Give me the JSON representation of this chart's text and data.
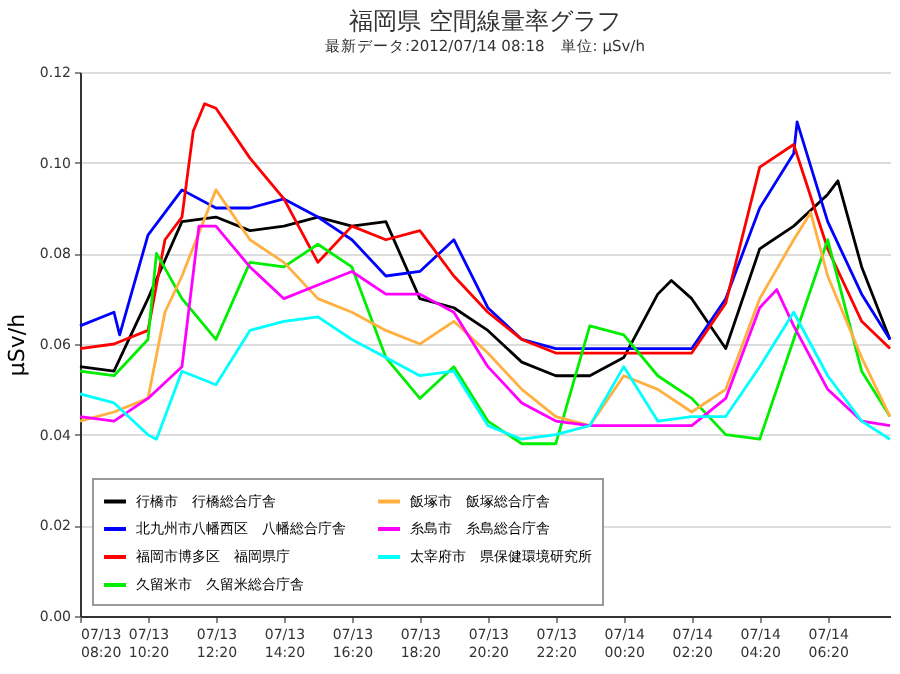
{
  "chart_data": {
    "type": "line",
    "title": "福岡県 空間線量率グラフ",
    "subtitle": "最新データ:2012/07/14 08:18　単位: μSv/h",
    "ylabel": "μSv/h",
    "xlim": [
      "2012-07-13T08:20",
      "2012-07-14T08:10"
    ],
    "xticks": [
      {
        "value": "2012-07-13T08:20",
        "label": "07/13\n08:20"
      },
      {
        "value": "2012-07-13T10:20",
        "label": "07/13\n10:20"
      },
      {
        "value": "2012-07-13T12:20",
        "label": "07/13\n12:20"
      },
      {
        "value": "2012-07-13T14:20",
        "label": "07/13\n14:20"
      },
      {
        "value": "2012-07-13T16:20",
        "label": "07/13\n16:20"
      },
      {
        "value": "2012-07-13T18:20",
        "label": "07/13\n18:20"
      },
      {
        "value": "2012-07-13T20:20",
        "label": "07/13\n20:20"
      },
      {
        "value": "2012-07-13T22:20",
        "label": "07/13\n22:20"
      },
      {
        "value": "2012-07-14T00:20",
        "label": "07/14\n00:20"
      },
      {
        "value": "2012-07-14T02:20",
        "label": "07/14\n02:20"
      },
      {
        "value": "2012-07-14T04:20",
        "label": "07/14\n04:20"
      },
      {
        "value": "2012-07-14T06:20",
        "label": "07/14\n06:20"
      }
    ],
    "ylim": [
      0,
      0.12
    ],
    "yticks": [
      {
        "value": 0,
        "label": "0.00"
      },
      {
        "value": 0.02,
        "label": "0.02"
      },
      {
        "value": 0.04,
        "label": "0.04"
      },
      {
        "value": 0.06,
        "label": "0.06"
      },
      {
        "value": 0.08,
        "label": "0.08"
      },
      {
        "value": 0.1,
        "label": "0.10"
      },
      {
        "value": 0.12,
        "label": "0.12"
      }
    ],
    "grid": "y",
    "legend": "bottom left",
    "series": [
      {
        "name": "行橋市　行橋総合庁舎",
        "color": "#000000",
        "x": [
          "2012-07-13T08:20",
          "2012-07-13T09:20",
          "2012-07-13T10:20",
          "2012-07-13T11:20",
          "2012-07-13T12:20",
          "2012-07-13T13:20",
          "2012-07-13T14:20",
          "2012-07-13T15:20",
          "2012-07-13T16:20",
          "2012-07-13T17:20",
          "2012-07-13T18:20",
          "2012-07-13T19:20",
          "2012-07-13T20:20",
          "2012-07-13T21:20",
          "2012-07-13T22:20",
          "2012-07-13T23:20",
          "2012-07-14T00:20",
          "2012-07-14T01:20",
          "2012-07-14T01:44",
          "2012-07-14T02:20",
          "2012-07-14T03:20",
          "2012-07-14T04:20",
          "2012-07-14T05:20",
          "2012-07-14T06:20",
          "2012-07-14T06:38",
          "2012-07-14T07:20",
          "2012-07-14T08:10"
        ],
        "values": [
          0.055,
          0.054,
          0.07,
          0.087,
          0.088,
          0.085,
          0.086,
          0.088,
          0.086,
          0.087,
          0.07,
          0.068,
          0.063,
          0.056,
          0.053,
          0.053,
          0.057,
          0.071,
          0.074,
          0.07,
          0.059,
          0.081,
          0.086,
          0.093,
          0.096,
          0.077,
          0.061
        ]
      },
      {
        "name": "北九州市八幡西区　八幡総合庁舎",
        "color": "#0000ff",
        "x": [
          "2012-07-13T08:20",
          "2012-07-13T09:20",
          "2012-07-13T09:30",
          "2012-07-13T10:20",
          "2012-07-13T11:20",
          "2012-07-13T12:20",
          "2012-07-13T13:20",
          "2012-07-13T14:20",
          "2012-07-13T15:20",
          "2012-07-13T16:20",
          "2012-07-13T17:20",
          "2012-07-13T18:20",
          "2012-07-13T19:20",
          "2012-07-13T20:20",
          "2012-07-13T21:20",
          "2012-07-13T22:20",
          "2012-07-13T23:20",
          "2012-07-14T00:20",
          "2012-07-14T01:20",
          "2012-07-14T02:20",
          "2012-07-14T03:20",
          "2012-07-14T04:20",
          "2012-07-14T05:20",
          "2012-07-14T05:26",
          "2012-07-14T06:20",
          "2012-07-14T07:20",
          "2012-07-14T08:10"
        ],
        "values": [
          0.064,
          0.067,
          0.062,
          0.084,
          0.094,
          0.09,
          0.09,
          0.092,
          0.088,
          0.083,
          0.075,
          0.076,
          0.083,
          0.068,
          0.061,
          0.059,
          0.059,
          0.059,
          0.059,
          0.059,
          0.07,
          0.09,
          0.102,
          0.109,
          0.087,
          0.071,
          0.061
        ]
      },
      {
        "name": "福岡市博多区　福岡県庁",
        "color": "#ff0000",
        "x": [
          "2012-07-13T08:20",
          "2012-07-13T09:20",
          "2012-07-13T10:20",
          "2012-07-13T10:50",
          "2012-07-13T11:20",
          "2012-07-13T11:40",
          "2012-07-13T12:00",
          "2012-07-13T12:20",
          "2012-07-13T13:20",
          "2012-07-13T14:20",
          "2012-07-13T15:20",
          "2012-07-13T16:20",
          "2012-07-13T17:20",
          "2012-07-13T18:20",
          "2012-07-13T19:20",
          "2012-07-13T20:20",
          "2012-07-13T21:20",
          "2012-07-13T22:20",
          "2012-07-13T23:20",
          "2012-07-14T00:20",
          "2012-07-14T01:20",
          "2012-07-14T02:20",
          "2012-07-14T03:20",
          "2012-07-14T04:20",
          "2012-07-14T05:20",
          "2012-07-14T06:20",
          "2012-07-14T07:20",
          "2012-07-14T08:10"
        ],
        "values": [
          0.059,
          0.06,
          0.063,
          0.083,
          0.088,
          0.107,
          0.113,
          0.112,
          0.101,
          0.092,
          0.078,
          0.086,
          0.083,
          0.085,
          0.075,
          0.067,
          0.061,
          0.058,
          0.058,
          0.058,
          0.058,
          0.058,
          0.069,
          0.099,
          0.104,
          0.081,
          0.065,
          0.059
        ]
      },
      {
        "name": "久留米市　久留米総合庁舎",
        "color": "#00ee00",
        "x": [
          "2012-07-13T08:20",
          "2012-07-13T09:20",
          "2012-07-13T10:20",
          "2012-07-13T10:35",
          "2012-07-13T11:20",
          "2012-07-13T12:20",
          "2012-07-13T13:20",
          "2012-07-13T14:20",
          "2012-07-13T15:20",
          "2012-07-13T16:20",
          "2012-07-13T17:20",
          "2012-07-13T18:20",
          "2012-07-13T19:20",
          "2012-07-13T20:20",
          "2012-07-13T21:20",
          "2012-07-13T22:20",
          "2012-07-13T23:20",
          "2012-07-14T00:20",
          "2012-07-14T01:20",
          "2012-07-14T02:20",
          "2012-07-14T03:20",
          "2012-07-14T04:20",
          "2012-07-14T05:20",
          "2012-07-14T06:20",
          "2012-07-14T07:20",
          "2012-07-14T08:10"
        ],
        "values": [
          0.054,
          0.053,
          0.061,
          0.08,
          0.07,
          0.061,
          0.078,
          0.077,
          0.082,
          0.077,
          0.057,
          0.048,
          0.055,
          0.043,
          0.038,
          0.038,
          0.064,
          0.062,
          0.053,
          0.048,
          0.04,
          0.039,
          0.061,
          0.083,
          0.054,
          0.044
        ]
      },
      {
        "name": "飯塚市　飯塚総合庁舎",
        "color": "#ffb040",
        "x": [
          "2012-07-13T08:20",
          "2012-07-13T09:20",
          "2012-07-13T10:20",
          "2012-07-13T10:50",
          "2012-07-13T11:20",
          "2012-07-13T12:20",
          "2012-07-13T13:20",
          "2012-07-13T14:20",
          "2012-07-13T15:20",
          "2012-07-13T16:20",
          "2012-07-13T17:20",
          "2012-07-13T18:20",
          "2012-07-13T19:20",
          "2012-07-13T20:20",
          "2012-07-13T21:20",
          "2012-07-13T22:20",
          "2012-07-13T23:20",
          "2012-07-14T00:20",
          "2012-07-14T01:20",
          "2012-07-14T02:20",
          "2012-07-14T03:20",
          "2012-07-14T04:20",
          "2012-07-14T05:20",
          "2012-07-14T05:50",
          "2012-07-14T06:20",
          "2012-07-14T07:20",
          "2012-07-14T08:10"
        ],
        "values": [
          0.043,
          0.045,
          0.048,
          0.067,
          0.075,
          0.094,
          0.083,
          0.078,
          0.07,
          0.067,
          0.063,
          0.06,
          0.065,
          0.058,
          0.05,
          0.044,
          0.042,
          0.053,
          0.05,
          0.045,
          0.05,
          0.07,
          0.083,
          0.089,
          0.075,
          0.057,
          0.044
        ]
      },
      {
        "name": "糸島市　糸島総合庁舎",
        "color": "#ff00ff",
        "x": [
          "2012-07-13T08:20",
          "2012-07-13T09:20",
          "2012-07-13T10:20",
          "2012-07-13T11:20",
          "2012-07-13T11:50",
          "2012-07-13T12:20",
          "2012-07-13T13:20",
          "2012-07-13T14:20",
          "2012-07-13T15:20",
          "2012-07-13T16:20",
          "2012-07-13T17:20",
          "2012-07-13T18:20",
          "2012-07-13T19:20",
          "2012-07-13T20:20",
          "2012-07-13T21:20",
          "2012-07-13T22:20",
          "2012-07-13T23:20",
          "2012-07-14T00:20",
          "2012-07-14T01:20",
          "2012-07-14T02:20",
          "2012-07-14T03:20",
          "2012-07-14T04:20",
          "2012-07-14T04:50",
          "2012-07-14T05:20",
          "2012-07-14T06:20",
          "2012-07-14T07:20",
          "2012-07-14T08:10"
        ],
        "values": [
          0.044,
          0.043,
          0.048,
          0.055,
          0.086,
          0.086,
          0.077,
          0.07,
          0.073,
          0.076,
          0.071,
          0.071,
          0.067,
          0.055,
          0.047,
          0.043,
          0.042,
          0.042,
          0.042,
          0.042,
          0.048,
          0.068,
          0.072,
          0.064,
          0.05,
          0.043,
          0.042
        ]
      },
      {
        "name": "太宰府市　県保健環境研究所",
        "color": "#00ffff",
        "x": [
          "2012-07-13T08:20",
          "2012-07-13T09:20",
          "2012-07-13T10:20",
          "2012-07-13T10:35",
          "2012-07-13T11:20",
          "2012-07-13T12:20",
          "2012-07-13T13:20",
          "2012-07-13T14:20",
          "2012-07-13T15:20",
          "2012-07-13T16:20",
          "2012-07-13T17:20",
          "2012-07-13T18:20",
          "2012-07-13T19:20",
          "2012-07-13T20:20",
          "2012-07-13T21:20",
          "2012-07-13T22:20",
          "2012-07-13T23:20",
          "2012-07-14T00:20",
          "2012-07-14T01:20",
          "2012-07-14T02:20",
          "2012-07-14T03:20",
          "2012-07-14T04:20",
          "2012-07-14T05:20",
          "2012-07-14T06:20",
          "2012-07-14T07:20",
          "2012-07-14T08:10"
        ],
        "values": [
          0.049,
          0.047,
          0.04,
          0.039,
          0.054,
          0.051,
          0.063,
          0.065,
          0.066,
          0.061,
          0.057,
          0.053,
          0.054,
          0.042,
          0.039,
          0.04,
          0.042,
          0.055,
          0.043,
          0.044,
          0.044,
          0.055,
          0.067,
          0.053,
          0.043,
          0.039
        ]
      }
    ]
  }
}
